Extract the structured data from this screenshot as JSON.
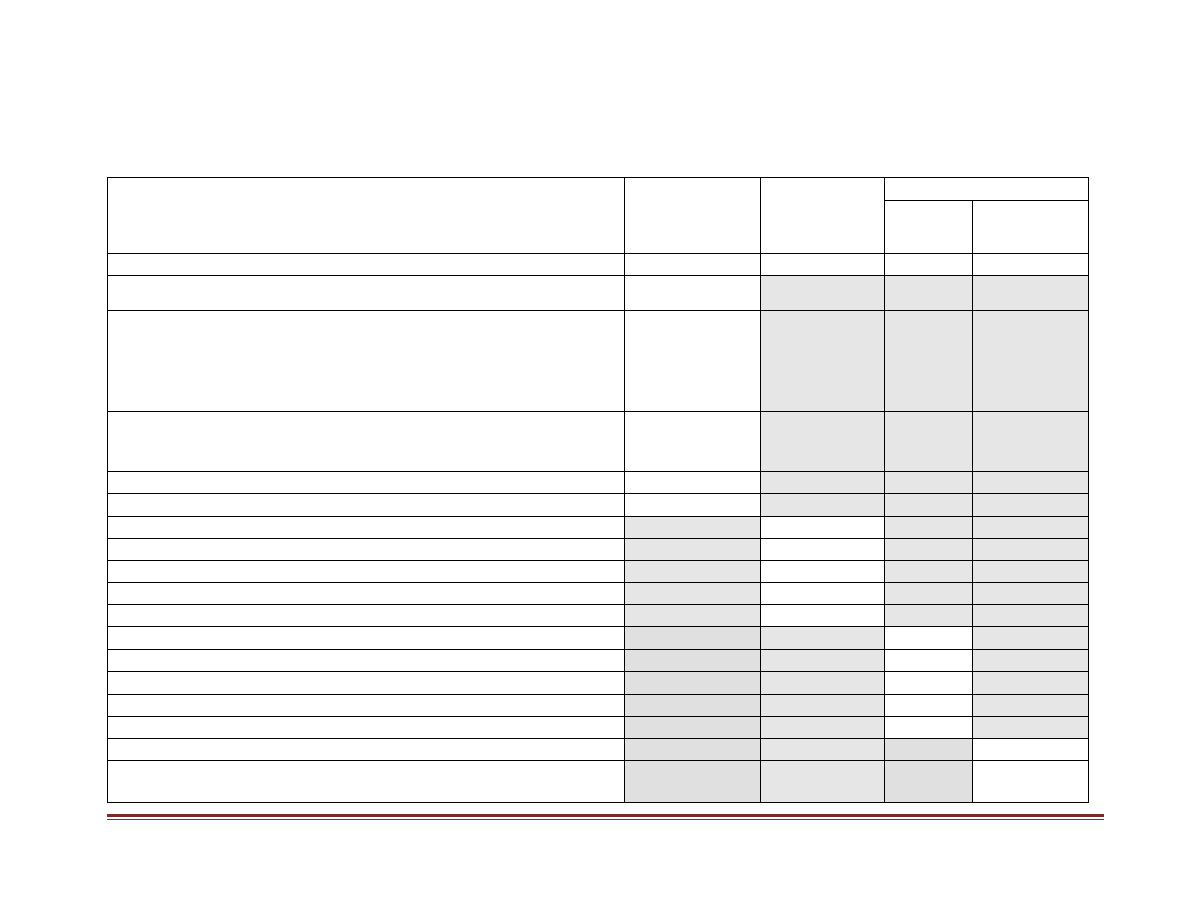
{
  "colors": {
    "shade": "#e6e6e6",
    "shade_dark": "#e0e0e0",
    "border": "#000000",
    "footer_rule": "#7f2a2a"
  },
  "rows": [
    {
      "shade": [
        0,
        0,
        0,
        0,
        0
      ]
    },
    {
      "shade": [
        0,
        1,
        1,
        1
      ]
    },
    {
      "shade": [
        0,
        1,
        1,
        1
      ]
    },
    {
      "shade": [
        0,
        1,
        1,
        1
      ]
    },
    {
      "shade": [
        0,
        1,
        1,
        1
      ]
    },
    {
      "shade": [
        0,
        1,
        1,
        1
      ]
    },
    {
      "shade": [
        1,
        0,
        1,
        1
      ]
    },
    {
      "shade": [
        1,
        0,
        1,
        1
      ]
    },
    {
      "shade": [
        1,
        0,
        1,
        1
      ]
    },
    {
      "shade": [
        1,
        0,
        1,
        1
      ]
    },
    {
      "shade": [
        1,
        0,
        1,
        1
      ]
    },
    {
      "shade": [
        2,
        1,
        0,
        1
      ]
    },
    {
      "shade": [
        2,
        1,
        0,
        1
      ]
    },
    {
      "shade": [
        2,
        1,
        0,
        1
      ]
    },
    {
      "shade": [
        2,
        1,
        0,
        1
      ]
    },
    {
      "shade": [
        2,
        1,
        0,
        1
      ]
    },
    {
      "shade": [
        2,
        1,
        2,
        0
      ]
    },
    {
      "shade": [
        2,
        1,
        2,
        0
      ]
    }
  ]
}
